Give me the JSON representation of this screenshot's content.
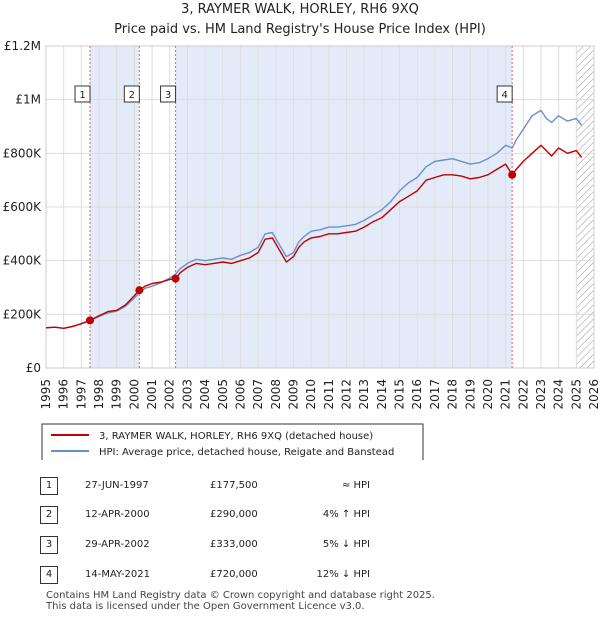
{
  "colors": {
    "price_line": "#c00000",
    "hpi_line": "#6a8fd0",
    "shade": "#e4ebf8",
    "hatch": "#999999",
    "marker_line": "#e06080"
  },
  "footer": {
    "line1": "Contains HM Land Registry data © Crown copyright and database right 2025.",
    "line2": "This data is licensed under the Open Government Licence v3.0."
  },
  "sales": [
    {
      "num": "1",
      "date": "27-JUN-1997",
      "price": "£177,500",
      "relation": "≈ HPI"
    },
    {
      "num": "2",
      "date": "12-APR-2000",
      "price": "£290,000",
      "relation": "4% ↑ HPI"
    },
    {
      "num": "3",
      "date": "29-APR-2002",
      "price": "£333,000",
      "relation": "5% ↓ HPI"
    },
    {
      "num": "4",
      "date": "14-MAY-2021",
      "price": "£720,000",
      "relation": "12% ↓ HPI"
    }
  ],
  "chart_data": {
    "type": "line",
    "title": "3, RAYMER WALK, HORLEY, RH6 9XQ",
    "subtitle": "Price paid vs. HM Land Registry's House Price Index (HPI)",
    "xlabel": "",
    "ylabel": "",
    "xlim": [
      1995,
      2026
    ],
    "ylim": [
      0,
      1200000
    ],
    "grid": true,
    "legend_position": "bottom",
    "x_ticks": [
      "1995",
      "1996",
      "1997",
      "1998",
      "1999",
      "2000",
      "2001",
      "2002",
      "2003",
      "2004",
      "2005",
      "2006",
      "2007",
      "2008",
      "2009",
      "2010",
      "2011",
      "2012",
      "2013",
      "2014",
      "2015",
      "2016",
      "2017",
      "2018",
      "2019",
      "2020",
      "2021",
      "2022",
      "2023",
      "2024",
      "2025",
      "2026"
    ],
    "y_ticks": [
      {
        "value": 0,
        "label": "£0"
      },
      {
        "value": 200000,
        "label": "£200K"
      },
      {
        "value": 400000,
        "label": "£400K"
      },
      {
        "value": 600000,
        "label": "£600K"
      },
      {
        "value": 800000,
        "label": "£800K"
      },
      {
        "value": 1000000,
        "label": "£1M"
      },
      {
        "value": 1200000,
        "label": "£1.2M"
      }
    ],
    "shaded_ranges": [
      {
        "from": 1997.49,
        "to": 2000.28
      },
      {
        "from": 2002.33,
        "to": 2021.37
      }
    ],
    "hatched_after": 2025.0,
    "series": [
      {
        "name": "3, RAYMER WALK, HORLEY, RH6 9XQ (detached house)",
        "x": [
          1995.0,
          1995.5,
          1996.0,
          1996.5,
          1997.0,
          1997.49,
          1998.0,
          1998.5,
          1999.0,
          1999.5,
          2000.0,
          2000.28,
          2000.6,
          2001.0,
          2001.5,
          2002.0,
          2002.33,
          2002.6,
          2003.0,
          2003.5,
          2004.0,
          2004.5,
          2005.0,
          2005.5,
          2006.0,
          2006.5,
          2007.0,
          2007.4,
          2007.8,
          2008.2,
          2008.6,
          2009.0,
          2009.3,
          2009.6,
          2010.0,
          2010.5,
          2011.0,
          2011.5,
          2012.0,
          2012.5,
          2013.0,
          2013.5,
          2014.0,
          2014.5,
          2015.0,
          2015.5,
          2016.0,
          2016.5,
          2017.0,
          2017.5,
          2018.0,
          2018.5,
          2019.0,
          2019.5,
          2020.0,
          2020.5,
          2021.0,
          2021.37,
          2021.6,
          2022.0,
          2022.5,
          2023.0,
          2023.3,
          2023.6,
          2024.0,
          2024.5,
          2025.0,
          2025.3
        ],
        "values": [
          150000,
          152000,
          148000,
          155000,
          165000,
          177500,
          195000,
          210000,
          215000,
          235000,
          270000,
          290000,
          305000,
          315000,
          320000,
          330000,
          333000,
          355000,
          375000,
          390000,
          385000,
          390000,
          395000,
          390000,
          400000,
          410000,
          430000,
          480000,
          485000,
          440000,
          395000,
          415000,
          450000,
          470000,
          485000,
          490000,
          500000,
          500000,
          505000,
          510000,
          525000,
          545000,
          560000,
          590000,
          620000,
          640000,
          660000,
          700000,
          710000,
          720000,
          720000,
          715000,
          705000,
          710000,
          720000,
          740000,
          760000,
          720000,
          740000,
          770000,
          800000,
          830000,
          810000,
          790000,
          820000,
          800000,
          810000,
          785000
        ]
      },
      {
        "name": "HPI: Average price, detached house, Reigate and Banstead",
        "x": [
          1995.0,
          1995.5,
          1996.0,
          1996.5,
          1997.0,
          1997.49,
          1998.0,
          1998.5,
          1999.0,
          1999.5,
          2000.0,
          2000.28,
          2000.6,
          2001.0,
          2001.5,
          2002.0,
          2002.33,
          2002.6,
          2003.0,
          2003.5,
          2004.0,
          2004.5,
          2005.0,
          2005.5,
          2006.0,
          2006.5,
          2007.0,
          2007.4,
          2007.8,
          2008.2,
          2008.6,
          2009.0,
          2009.3,
          2009.6,
          2010.0,
          2010.5,
          2011.0,
          2011.5,
          2012.0,
          2012.5,
          2013.0,
          2013.5,
          2014.0,
          2014.5,
          2015.0,
          2015.5,
          2016.0,
          2016.5,
          2017.0,
          2017.5,
          2018.0,
          2018.5,
          2019.0,
          2019.5,
          2020.0,
          2020.5,
          2021.0,
          2021.37,
          2021.6,
          2022.0,
          2022.5,
          2023.0,
          2023.3,
          2023.6,
          2024.0,
          2024.5,
          2025.0,
          2025.3
        ],
        "values": [
          150000,
          152000,
          148000,
          155000,
          165000,
          177000,
          192000,
          205000,
          212000,
          230000,
          262000,
          279000,
          297000,
          305000,
          318000,
          335000,
          350000,
          370000,
          390000,
          405000,
          400000,
          405000,
          410000,
          405000,
          420000,
          430000,
          450000,
          500000,
          505000,
          460000,
          415000,
          430000,
          470000,
          490000,
          510000,
          515000,
          525000,
          525000,
          530000,
          535000,
          550000,
          570000,
          590000,
          620000,
          660000,
          690000,
          710000,
          750000,
          770000,
          775000,
          780000,
          770000,
          760000,
          765000,
          780000,
          800000,
          830000,
          820000,
          850000,
          890000,
          940000,
          960000,
          930000,
          915000,
          940000,
          920000,
          930000,
          905000
        ]
      }
    ],
    "sale_markers": [
      {
        "label": "1",
        "x": 1997.49,
        "value": 177500
      },
      {
        "label": "2",
        "x": 2000.28,
        "value": 290000
      },
      {
        "label": "3",
        "x": 2002.33,
        "value": 333000
      },
      {
        "label": "4",
        "x": 2021.37,
        "value": 720000
      }
    ]
  }
}
